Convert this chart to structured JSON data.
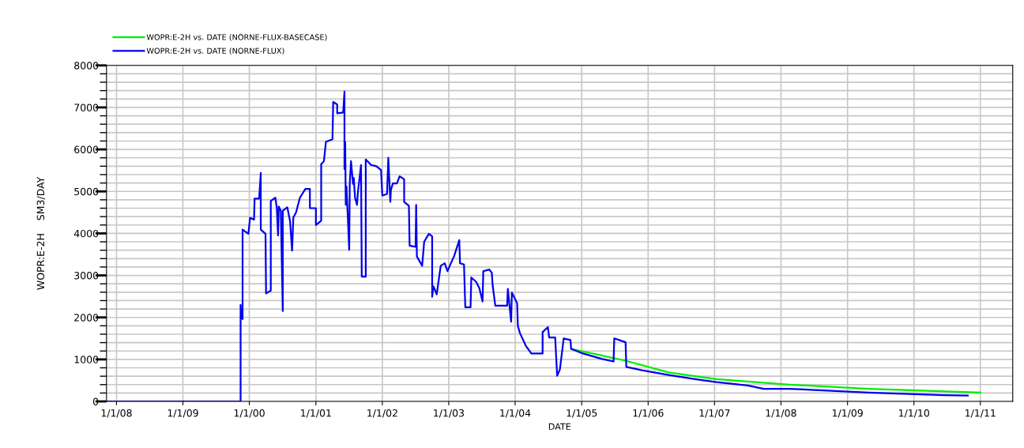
{
  "chart_data": {
    "type": "line",
    "xlabel": "DATE",
    "ylabel": "WOPR:E-2H    SM3/DAY",
    "xlim": [
      "1997-11-07",
      "2011-06-28"
    ],
    "xticks": [
      {
        "value": "1998-01-01",
        "label": "1/1/08"
      },
      {
        "value": "1999-01-01",
        "label": "1/1/09"
      },
      {
        "value": "2000-01-01",
        "label": "1/1/00"
      },
      {
        "value": "2001-01-01",
        "label": "1/1/01"
      },
      {
        "value": "2002-01-01",
        "label": "1/1/02"
      },
      {
        "value": "2003-01-01",
        "label": "1/1/03"
      },
      {
        "value": "2004-01-01",
        "label": "1/1/04"
      },
      {
        "value": "2005-01-01",
        "label": "1/1/05"
      },
      {
        "value": "2006-01-01",
        "label": "1/1/06"
      },
      {
        "value": "2007-01-01",
        "label": "1/1/07"
      },
      {
        "value": "2008-01-01",
        "label": "1/1/08"
      },
      {
        "value": "2009-01-01",
        "label": "1/1/09"
      },
      {
        "value": "2010-01-01",
        "label": "1/1/10"
      },
      {
        "value": "2011-01-01",
        "label": "1/1/11"
      }
    ],
    "ylim": [
      0,
      8000
    ],
    "yticks": [
      0,
      {
        "value": 200,
        "label": null
      },
      {
        "value": 400,
        "label": null
      },
      {
        "value": 600,
        "label": null
      },
      {
        "value": 800,
        "label": null
      },
      1000,
      {
        "value": 1200,
        "label": null
      },
      {
        "value": 1400,
        "label": null
      },
      {
        "value": 1600,
        "label": null
      },
      {
        "value": 1800,
        "label": null
      },
      2000,
      {
        "value": 2200,
        "label": null
      },
      {
        "value": 2400,
        "label": null
      },
      {
        "value": 2600,
        "label": null
      },
      {
        "value": 2800,
        "label": null
      },
      3000,
      {
        "value": 3200,
        "label": null
      },
      {
        "value": 3400,
        "label": null
      },
      {
        "value": 3600,
        "label": null
      },
      {
        "value": 3800,
        "label": null
      },
      4000,
      {
        "value": 4200,
        "label": null
      },
      {
        "value": 4400,
        "label": null
      },
      {
        "value": 4600,
        "label": null
      },
      {
        "value": 4800,
        "label": null
      },
      5000,
      {
        "value": 5200,
        "label": null
      },
      {
        "value": 5400,
        "label": null
      },
      {
        "value": 5600,
        "label": null
      },
      {
        "value": 5800,
        "label": null
      },
      6000,
      {
        "value": 6200,
        "label": null
      },
      {
        "value": 6400,
        "label": null
      },
      {
        "value": 6600,
        "label": null
      },
      {
        "value": 6800,
        "label": null
      },
      7000,
      {
        "value": 7200,
        "label": null
      },
      {
        "value": 7400,
        "label": null
      },
      {
        "value": 7600,
        "label": null
      },
      {
        "value": 7800,
        "label": null
      },
      8000
    ],
    "grid": true,
    "legend": "top left",
    "line_style": "solid",
    "marker": "none",
    "series": [
      {
        "name": "WOPR:E-2H vs. DATE (NORNE-FLUX-BASECASE)",
        "color": "#00ee00",
        "x": [
          "2004-11-04",
          "2005-08-30",
          "2006-04-24",
          "2007-01-12",
          "2008-02-17",
          "2009-04-28",
          "2011-01-01"
        ],
        "values": [
          1250,
          970,
          690,
          530,
          400,
          300,
          210
        ]
      },
      {
        "name": "WOPR:E-2H vs. DATE (NORNE-FLUX)",
        "color": "#0000ee",
        "x": [
          "1997-11-14",
          "1999-11-14",
          "1999-11-14",
          "1999-11-17",
          "1999-11-25",
          "1999-11-25",
          "1999-12-27",
          "2000-01-05",
          "2000-01-27",
          "2000-01-30",
          "2000-02-24",
          "2000-03-04",
          "2000-03-04",
          "2000-03-30",
          "2000-04-02",
          "2000-04-28",
          "2000-04-28",
          "2000-05-23",
          "2000-05-31",
          "2000-06-07",
          "2000-06-11",
          "2000-06-22",
          "2000-07-03",
          "2000-07-03",
          "2000-07-28",
          "2000-08-12",
          "2000-08-23",
          "2000-08-30",
          "2000-09-14",
          "2000-10-05",
          "2000-11-04",
          "2000-11-29",
          "2000-11-29",
          "2001-01-01",
          "2001-01-01",
          "2001-01-30",
          "2001-01-30",
          "2001-02-14",
          "2001-02-25",
          "2001-04-02",
          "2001-04-06",
          "2001-04-28",
          "2001-04-28",
          "2001-05-31",
          "2001-06-07",
          "2001-06-07",
          "2001-06-11",
          "2001-06-14",
          "2001-06-18",
          "2001-07-03",
          "2001-07-06",
          "2001-07-13",
          "2001-07-24",
          "2001-07-28",
          "2001-08-04",
          "2001-08-15",
          "2001-08-19",
          "2001-09-06",
          "2001-09-10",
          "2001-10-02",
          "2001-10-02",
          "2001-10-31",
          "2001-11-29",
          "2001-12-25",
          "2002-01-01",
          "2002-01-27",
          "2002-02-03",
          "2002-02-14",
          "2002-02-17",
          "2002-02-28",
          "2002-03-22",
          "2002-04-06",
          "2002-05-01",
          "2002-05-01",
          "2002-05-27",
          "2002-05-31",
          "2002-07-03",
          "2002-07-06",
          "2002-07-10",
          "2002-08-08",
          "2002-08-19",
          "2002-09-14",
          "2002-10-02",
          "2002-10-02",
          "2002-10-09",
          "2002-10-27",
          "2002-11-18",
          "2002-12-10",
          "2002-12-25",
          "2003-01-12",
          "2003-01-30",
          "2003-02-28",
          "2003-03-04",
          "2003-03-26",
          "2003-04-02",
          "2003-05-01",
          "2003-05-05",
          "2003-05-31",
          "2003-06-18",
          "2003-07-06",
          "2003-07-10",
          "2003-08-04",
          "2003-08-12",
          "2003-08-26",
          "2003-08-30",
          "2003-09-14",
          "2003-11-18",
          "2003-11-22",
          "2003-12-10",
          "2003-12-14",
          "2004-01-12",
          "2004-01-16",
          "2004-01-27",
          "2004-02-28",
          "2004-03-30",
          "2004-05-31",
          "2004-05-31",
          "2004-06-29",
          "2004-07-06",
          "2004-08-08",
          "2004-08-19",
          "2004-09-03",
          "2004-09-24",
          "2004-10-31",
          "2004-11-04",
          "2005-01-08",
          "2005-04-24",
          "2005-06-25",
          "2005-06-29",
          "2005-08-30",
          "2005-09-03",
          "2005-11-29",
          "2006-04-24",
          "2006-09-17",
          "2007-01-12",
          "2007-07-03",
          "2007-09-28",
          "2008-02-17",
          "2009-04-28",
          "2010-06-14",
          "2010-10-24"
        ],
        "values": [
          0,
          0,
          2300,
          2050,
          1960,
          4090,
          3990,
          4370,
          4330,
          4830,
          4830,
          5440,
          4090,
          3990,
          2570,
          2640,
          4770,
          4850,
          4610,
          3950,
          4640,
          4540,
          2150,
          4540,
          4620,
          4290,
          3590,
          4380,
          4500,
          4850,
          5060,
          5060,
          4600,
          4600,
          4200,
          4300,
          5650,
          5720,
          6180,
          6240,
          7130,
          7070,
          6860,
          6880,
          7380,
          5530,
          6180,
          4680,
          5120,
          3610,
          5180,
          5720,
          5180,
          5320,
          4850,
          4680,
          4940,
          5630,
          2970,
          2970,
          5760,
          5630,
          5600,
          5510,
          4900,
          4940,
          5800,
          4750,
          5030,
          5190,
          5190,
          5360,
          5290,
          4750,
          4660,
          3710,
          3680,
          4680,
          3450,
          3230,
          3800,
          3990,
          3930,
          2490,
          2740,
          2550,
          3230,
          3290,
          3100,
          3280,
          3450,
          3840,
          3290,
          3260,
          2240,
          2240,
          2950,
          2850,
          2700,
          2380,
          3100,
          3130,
          3140,
          3060,
          2780,
          2280,
          2280,
          2680,
          1900,
          2590,
          2340,
          1800,
          1630,
          1330,
          1140,
          1140,
          1650,
          1770,
          1520,
          1520,
          610,
          760,
          1500,
          1460,
          1250,
          1140,
          1010,
          950,
          1500,
          1410,
          820,
          740,
          630,
          530,
          460,
          380,
          300,
          300,
          210,
          150,
          140
        ]
      }
    ]
  }
}
